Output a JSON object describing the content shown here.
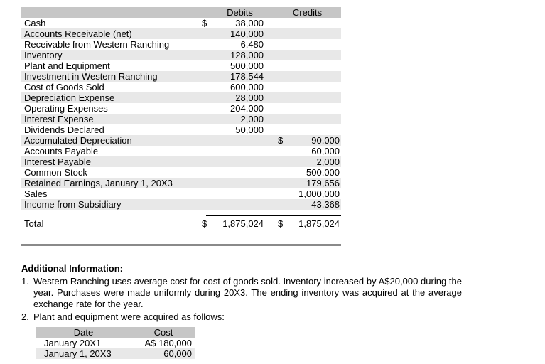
{
  "colors": {
    "table_header_bg": "#c6c6c6",
    "row_stripe_bg": "#e8e8e8",
    "section_divider": "#8a8a8a"
  },
  "trial_balance": {
    "header": {
      "debits": "Debits",
      "credits": "Credits"
    },
    "rows": [
      {
        "account": "Cash",
        "debit_sign": "$",
        "debit": "38,000",
        "credit_sign": "",
        "credit": ""
      },
      {
        "account": "Accounts Receivable (net)",
        "debit_sign": "",
        "debit": "140,000",
        "credit_sign": "",
        "credit": ""
      },
      {
        "account": "Receivable from Western Ranching",
        "debit_sign": "",
        "debit": "6,480",
        "credit_sign": "",
        "credit": ""
      },
      {
        "account": "Inventory",
        "debit_sign": "",
        "debit": "128,000",
        "credit_sign": "",
        "credit": ""
      },
      {
        "account": "Plant and Equipment",
        "debit_sign": "",
        "debit": "500,000",
        "credit_sign": "",
        "credit": ""
      },
      {
        "account": "Investment in Western Ranching",
        "debit_sign": "",
        "debit": "178,544",
        "credit_sign": "",
        "credit": ""
      },
      {
        "account": "Cost of Goods Sold",
        "debit_sign": "",
        "debit": "600,000",
        "credit_sign": "",
        "credit": ""
      },
      {
        "account": "Depreciation Expense",
        "debit_sign": "",
        "debit": "28,000",
        "credit_sign": "",
        "credit": ""
      },
      {
        "account": "Operating Expenses",
        "debit_sign": "",
        "debit": "204,000",
        "credit_sign": "",
        "credit": ""
      },
      {
        "account": "Interest Expense",
        "debit_sign": "",
        "debit": "2,000",
        "credit_sign": "",
        "credit": ""
      },
      {
        "account": "Dividends Declared",
        "debit_sign": "",
        "debit": "50,000",
        "credit_sign": "",
        "credit": ""
      },
      {
        "account": "Accumulated Depreciation",
        "debit_sign": "",
        "debit": "",
        "credit_sign": "$",
        "credit": "90,000"
      },
      {
        "account": "Accounts Payable",
        "debit_sign": "",
        "debit": "",
        "credit_sign": "",
        "credit": "60,000"
      },
      {
        "account": "Interest Payable",
        "debit_sign": "",
        "debit": "",
        "credit_sign": "",
        "credit": "2,000"
      },
      {
        "account": "Common Stock",
        "debit_sign": "",
        "debit": "",
        "credit_sign": "",
        "credit": "500,000"
      },
      {
        "account": "Retained Earnings, January 1, 20X3",
        "debit_sign": "",
        "debit": "",
        "credit_sign": "",
        "credit": "179,656"
      },
      {
        "account": "Sales",
        "debit_sign": "",
        "debit": "",
        "credit_sign": "",
        "credit": "1,000,000"
      },
      {
        "account": "Income from Subsidiary",
        "debit_sign": "",
        "debit": "",
        "credit_sign": "",
        "credit": "43,368"
      }
    ],
    "total": {
      "label": "Total",
      "debit_sign": "$",
      "debit": "1,875,024",
      "credit_sign": "$",
      "credit": "1,875,024"
    }
  },
  "additional_info": {
    "heading": "Additional Information:",
    "items": [
      {
        "number": "1.",
        "text": "Western Ranching uses average cost for cost of goods sold. Inventory increased by A$20,000 during the year. Purchases were made uniformly during 20X3. The ending inventory was acquired at the average exchange rate for the year."
      },
      {
        "number": "2.",
        "text": "Plant and equipment were acquired as follows:"
      }
    ]
  },
  "acquisitions": {
    "header": {
      "date": "Date",
      "cost": "Cost"
    },
    "rows": [
      {
        "date": "January 20X1",
        "cost": "A$ 180,000"
      },
      {
        "date": "January 1, 20X3",
        "cost": "60,000"
      }
    ]
  }
}
